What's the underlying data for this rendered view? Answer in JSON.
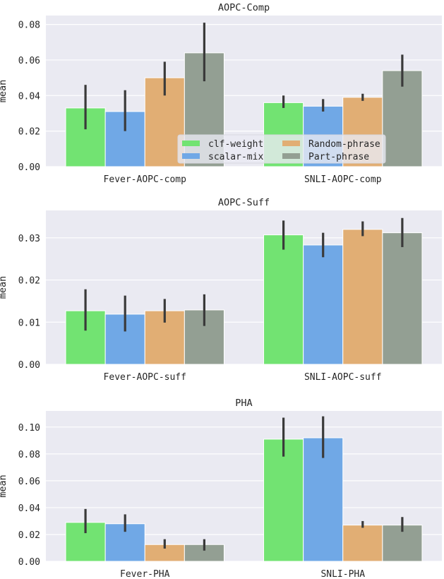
{
  "chart_data": [
    {
      "type": "bar",
      "title": "AOPC-Comp",
      "ylabel": "mean",
      "xlabel": "",
      "categories": [
        "Fever-AOPC-comp",
        "SNLI-AOPC-comp"
      ],
      "ylim": [
        0,
        0.085
      ],
      "yticks": [
        "0.00",
        "0.02",
        "0.04",
        "0.06",
        "0.08"
      ],
      "grid": true,
      "legend": "lower-center",
      "series": [
        {
          "name": "clf-weight",
          "values": [
            0.033,
            0.036
          ],
          "err_low": [
            0.021,
            0.033
          ],
          "err_high": [
            0.046,
            0.04
          ]
        },
        {
          "name": "scalar-mix",
          "values": [
            0.031,
            0.034
          ],
          "err_low": [
            0.02,
            0.031
          ],
          "err_high": [
            0.043,
            0.038
          ]
        },
        {
          "name": "Random-phrase",
          "values": [
            0.05,
            0.039
          ],
          "err_low": [
            0.04,
            0.037
          ],
          "err_high": [
            0.059,
            0.041
          ]
        },
        {
          "name": "Part-phrase",
          "values": [
            0.064,
            0.054
          ],
          "err_low": [
            0.048,
            0.045
          ],
          "err_high": [
            0.081,
            0.063
          ]
        }
      ]
    },
    {
      "type": "bar",
      "title": "AOPC-Suff",
      "ylabel": "mean",
      "xlabel": "",
      "categories": [
        "Fever-AOPC-suff",
        "SNLI-AOPC-suff"
      ],
      "ylim": [
        0,
        0.0365
      ],
      "yticks": [
        "0.00",
        "0.01",
        "0.02",
        "0.03"
      ],
      "grid": true,
      "series": [
        {
          "name": "clf-weight",
          "values": [
            0.0127,
            0.0307
          ],
          "err_low": [
            0.008,
            0.0272
          ],
          "err_high": [
            0.0178,
            0.0341
          ]
        },
        {
          "name": "scalar-mix",
          "values": [
            0.0119,
            0.0283
          ],
          "err_low": [
            0.0078,
            0.0254
          ],
          "err_high": [
            0.0163,
            0.0312
          ]
        },
        {
          "name": "Random-phrase",
          "values": [
            0.0127,
            0.032
          ],
          "err_low": [
            0.0099,
            0.0304
          ],
          "err_high": [
            0.0155,
            0.0339
          ]
        },
        {
          "name": "Part-phrase",
          "values": [
            0.0129,
            0.0312
          ],
          "err_low": [
            0.0091,
            0.0278
          ],
          "err_high": [
            0.0166,
            0.0347
          ]
        }
      ]
    },
    {
      "type": "bar",
      "title": "PHA",
      "ylabel": "mean",
      "xlabel": "",
      "categories": [
        "Fever-PHA",
        "SNLI-PHA"
      ],
      "ylim": [
        0,
        0.112
      ],
      "yticks": [
        "0.00",
        "0.02",
        "0.04",
        "0.06",
        "0.08",
        "0.10"
      ],
      "grid": true,
      "series": [
        {
          "name": "clf-weight",
          "values": [
            0.029,
            0.091
          ],
          "err_low": [
            0.021,
            0.078
          ],
          "err_high": [
            0.039,
            0.107
          ]
        },
        {
          "name": "scalar-mix",
          "values": [
            0.028,
            0.092
          ],
          "err_low": [
            0.022,
            0.077
          ],
          "err_high": [
            0.035,
            0.108
          ]
        },
        {
          "name": "Random-phrase",
          "values": [
            0.0125,
            0.027
          ],
          "err_low": [
            0.0095,
            0.025
          ],
          "err_high": [
            0.0165,
            0.03
          ]
        },
        {
          "name": "Part-phrase",
          "values": [
            0.0125,
            0.027
          ],
          "err_low": [
            0.008,
            0.022
          ],
          "err_high": [
            0.0165,
            0.033
          ]
        }
      ]
    }
  ],
  "colors": {
    "clf-weight": "#72e372",
    "scalar-mix": "#70a8e6",
    "Random-phrase": "#e1ae74",
    "Part-phrase": "#939f93",
    "background": "#eaeaf2",
    "errorbar": "#3a3a3a"
  }
}
